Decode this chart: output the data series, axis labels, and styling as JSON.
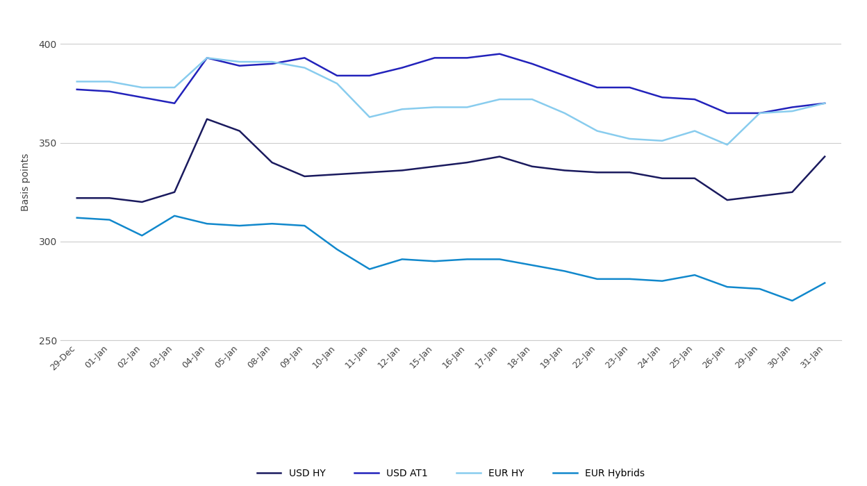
{
  "dates": [
    "29-Dec",
    "01-Jan",
    "02-Jan",
    "03-Jan",
    "04-Jan",
    "05-Jan",
    "08-Jan",
    "09-Jan",
    "10-Jan",
    "11-Jan",
    "12-Jan",
    "15-Jan",
    "16-Jan",
    "17-Jan",
    "18-Jan",
    "19-Jan",
    "22-Jan",
    "23-Jan",
    "24-Jan",
    "25-Jan",
    "26-Jan",
    "29-Jan",
    "30-Jan",
    "31-Jan"
  ],
  "usd_hy": [
    322,
    322,
    320,
    325,
    362,
    356,
    340,
    333,
    334,
    335,
    336,
    338,
    340,
    343,
    338,
    336,
    335,
    335,
    332,
    332,
    321,
    323,
    325,
    343
  ],
  "usd_at1": [
    377,
    376,
    373,
    370,
    393,
    389,
    390,
    393,
    384,
    384,
    388,
    393,
    393,
    395,
    390,
    384,
    378,
    378,
    373,
    372,
    365,
    365,
    368,
    370
  ],
  "eur_hy": [
    381,
    381,
    378,
    378,
    393,
    391,
    391,
    388,
    380,
    363,
    367,
    368,
    368,
    372,
    372,
    365,
    356,
    352,
    351,
    356,
    349,
    365,
    366,
    370
  ],
  "eur_hybrids": [
    312,
    311,
    303,
    313,
    309,
    308,
    309,
    308,
    296,
    286,
    291,
    290,
    291,
    291,
    288,
    285,
    281,
    281,
    280,
    283,
    277,
    276,
    270,
    279
  ],
  "colors": {
    "usd_hy": "#1a1a5e",
    "usd_at1": "#2222bb",
    "eur_hy": "#88ccee",
    "eur_hybrids": "#1188cc"
  },
  "ylabel": "Basis points",
  "ylim": [
    250,
    410
  ],
  "yticks": [
    250,
    300,
    350,
    400
  ],
  "legend_labels": [
    "USD HY",
    "USD AT1",
    "EUR HY",
    "EUR Hybrids"
  ],
  "background_color": "#ffffff",
  "grid_color": "#cccccc"
}
